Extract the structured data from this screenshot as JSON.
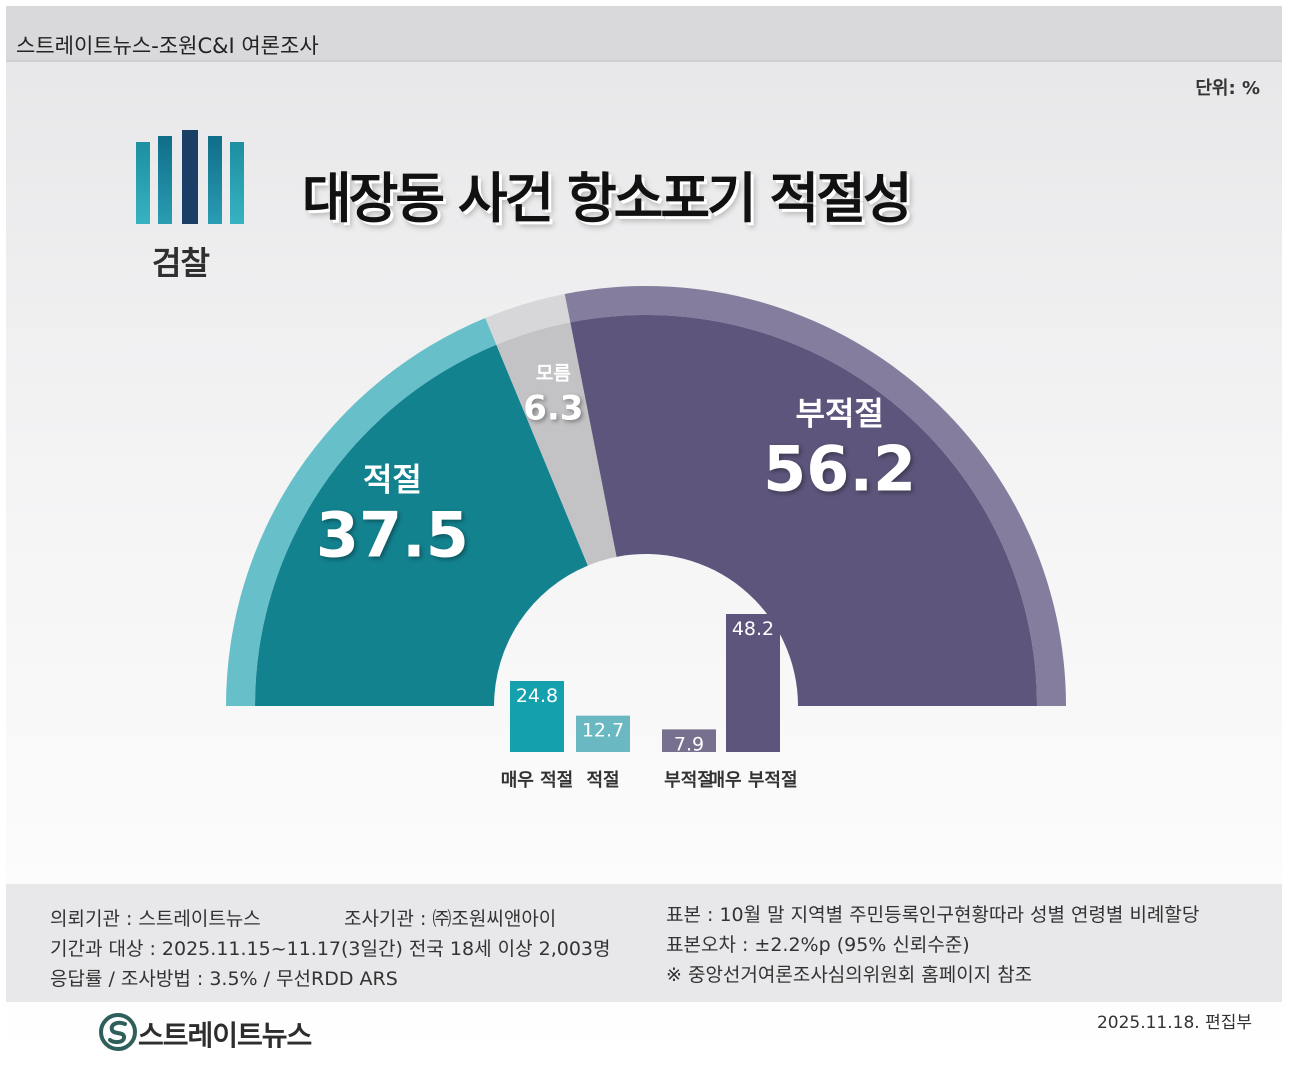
{
  "header": {
    "source": "스트레이트뉴스-조원C&I 여론조사",
    "unit": "단위: %"
  },
  "logo": {
    "label": "검찰"
  },
  "title": "대장동 사건 항소포기 적절성",
  "chart_data": {
    "type": "pie",
    "shape": "semicircle-donut",
    "slices": [
      {
        "label": "적절",
        "value": 37.5,
        "color": "#13828f",
        "outer_color": "#66bfc9"
      },
      {
        "label": "모름",
        "value": 6.3,
        "color": "#c3c3c5",
        "outer_color": "#d7d7d9"
      },
      {
        "label": "부적절",
        "value": 56.2,
        "color": "#5d557b",
        "outer_color": "#847d9d"
      }
    ],
    "breakdown": {
      "type": "bar",
      "categories": [
        "매우 적절",
        "적절",
        "부적절",
        "매우 부적절"
      ],
      "values": [
        24.8,
        12.7,
        7.9,
        48.2
      ],
      "colors": [
        "#14a1ad",
        "#6ab9c2",
        "#77708f",
        "#5d557b"
      ]
    }
  },
  "footer": {
    "client": "의뢰기관 : 스트레이트뉴스",
    "agency": "조사기관 : ㈜조원씨앤아이",
    "period": "기간과 대상 : 2025.11.15~11.17(3일간)   전국 18세 이상  2,003명",
    "method": "응답률 / 조사방법 : 3.5% / 무선RDD ARS",
    "sample": "표본 : 10월 말 지역별 주민등록인구현황따라 성별 연령별 비례할당",
    "error": "표본오차 : ±2.2%p (95% 신뢰수준)",
    "note": "※ 중앙선거여론조사심의위원회 홈페이지 참조"
  },
  "brand": {
    "name": "스트레이트뉴스",
    "logo_icon": "straight-news-logo-icon"
  },
  "edit_date": "2025.11.18. 편집부"
}
